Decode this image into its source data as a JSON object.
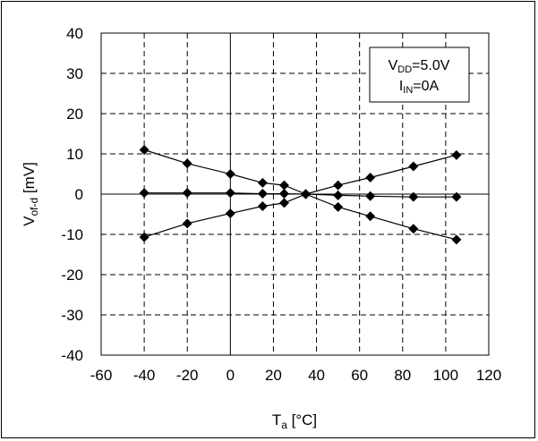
{
  "chart_data": {
    "type": "line",
    "xlabel": {
      "main": "T",
      "sub": "a",
      "unit": " [°C]"
    },
    "ylabel": {
      "main": "V",
      "sub": "of-d",
      "unit": " [mV]"
    },
    "xlim": [
      -60,
      120
    ],
    "ylim": [
      -40,
      40
    ],
    "x_ticks": [
      -60,
      -40,
      -20,
      0,
      20,
      40,
      60,
      80,
      100,
      120
    ],
    "y_ticks": [
      40,
      30,
      20,
      10,
      0,
      -10,
      -20,
      -30,
      -40
    ],
    "x_tick_labels": [
      "-60",
      "-40",
      "-20",
      "0",
      "20",
      "40",
      "60",
      "80",
      "100",
      "120"
    ],
    "y_tick_labels": [
      "40",
      "30",
      "20",
      "10",
      "0",
      "-10",
      "-20",
      "-30",
      "-40"
    ],
    "grid": "dashed",
    "annotation": {
      "line1": {
        "main": "V",
        "sub": "DD",
        "rest": "=5.0V"
      },
      "line2": {
        "main": "I",
        "sub": "IN",
        "rest": "=0A"
      }
    },
    "series": [
      {
        "x": [
          -40,
          -20,
          0,
          15,
          25,
          35,
          50,
          65,
          85,
          105
        ],
        "values": [
          11,
          7.6,
          5,
          2.8,
          2.2,
          0,
          -3.2,
          -5.5,
          -8.6,
          -11.3
        ]
      },
      {
        "x": [
          -40,
          -20,
          0,
          15,
          25,
          35,
          50,
          65,
          85,
          105
        ],
        "values": [
          0.3,
          0.3,
          0.3,
          0.1,
          0.1,
          0,
          -0.3,
          -0.5,
          -0.7,
          -0.7
        ]
      },
      {
        "x": [
          -40,
          -20,
          0,
          15,
          25,
          35,
          50,
          65,
          85,
          105
        ],
        "values": [
          -10.7,
          -7.3,
          -4.8,
          -3.0,
          -2.2,
          0,
          2.2,
          4.1,
          6.9,
          9.7
        ]
      }
    ],
    "colors": {
      "line": "#000000",
      "marker": "#000000",
      "grid": "#000000"
    }
  }
}
